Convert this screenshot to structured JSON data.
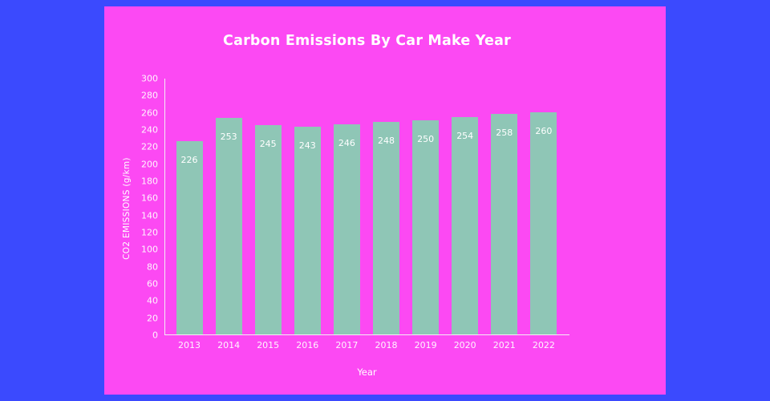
{
  "page": {
    "frame_color": "#3b4afe",
    "panel_color": "#fc49f3"
  },
  "chart_data": {
    "type": "bar",
    "title": "Carbon Emissions By Car Make Year",
    "xlabel": "Year",
    "ylabel": "CO2 EMISSIONS (g/km)",
    "categories": [
      "2013",
      "2014",
      "2015",
      "2016",
      "2017",
      "2018",
      "2019",
      "2020",
      "2021",
      "2022"
    ],
    "values": [
      226,
      253,
      245,
      243,
      246,
      248,
      250,
      254,
      258,
      260
    ],
    "ylim": [
      0,
      300
    ],
    "yticks": [
      0,
      20,
      40,
      60,
      80,
      100,
      120,
      140,
      160,
      180,
      200,
      220,
      240,
      260,
      280,
      300
    ],
    "bar_color": "#8fc6b6",
    "text_color": "#ffffff",
    "grid": false,
    "legend_position": "none"
  }
}
